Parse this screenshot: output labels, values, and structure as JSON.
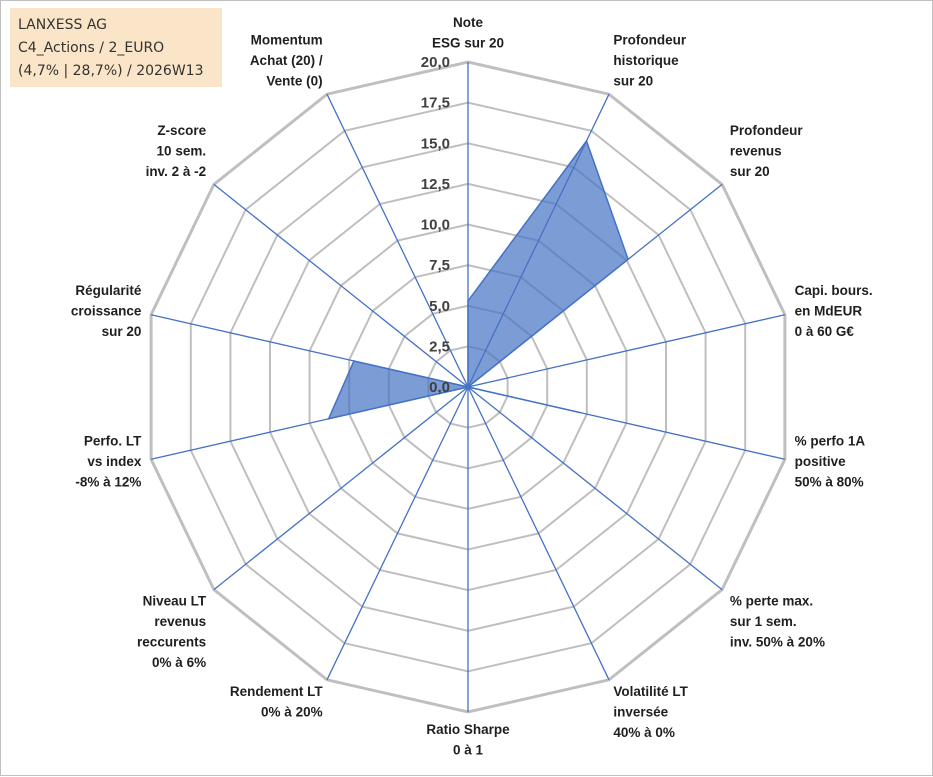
{
  "info_box": {
    "company": "LANXESS AG",
    "portfolio": "C4_Actions / 2_EURO",
    "period": "(4,7% | 28,7%) / 2026W13"
  },
  "chart_data": {
    "type": "radar",
    "title": "",
    "rmax": 20,
    "rings": 8,
    "tick_labels": [
      "0,0",
      "2,5",
      "5,0",
      "7,5",
      "10,0",
      "12,5",
      "15,0",
      "17,5",
      "20,0"
    ],
    "axes": [
      [
        "Note",
        "ESG sur 20"
      ],
      [
        "Profondeur",
        "historique",
        "sur 20"
      ],
      [
        "Profondeur",
        "revenus",
        "sur 20"
      ],
      [
        "Capi. bours.",
        "en MdEUR",
        "0 à 60 G€"
      ],
      [
        "% perfo 1A",
        "positive",
        "50% à 80%"
      ],
      [
        "% perte max.",
        "sur 1 sem.",
        "inv. 50% à 20%"
      ],
      [
        "Volatilité LT",
        "inversée",
        "40% à 0%"
      ],
      [
        "Ratio Sharpe",
        "0 à 1"
      ],
      [
        "Rendement LT",
        "0% à 20%"
      ],
      [
        "Niveau LT",
        "revenus",
        "reccurents",
        "0% à 6%"
      ],
      [
        "Perfo. LT",
        "vs index",
        "-8% à 12%"
      ],
      [
        "Régularité",
        "croissance",
        "sur 20"
      ],
      [
        "Z-score",
        "10 sem.",
        "inv. 2 à -2"
      ],
      [
        "Momentum",
        "Achat (20) /",
        "Vente (0)"
      ]
    ],
    "series": [
      {
        "values": [
          5.3,
          16.8,
          12.6,
          0.0,
          7.1,
          0.0,
          0.0,
          0.0,
          0.0,
          0.0,
          8.8,
          7.2,
          0.0,
          0.0
        ],
        "color": "#4472c4",
        "fill_opacity": 0.7
      }
    ],
    "grid": true,
    "grid_color": "#bfbfbf",
    "spoke_color": "#4472c4"
  }
}
